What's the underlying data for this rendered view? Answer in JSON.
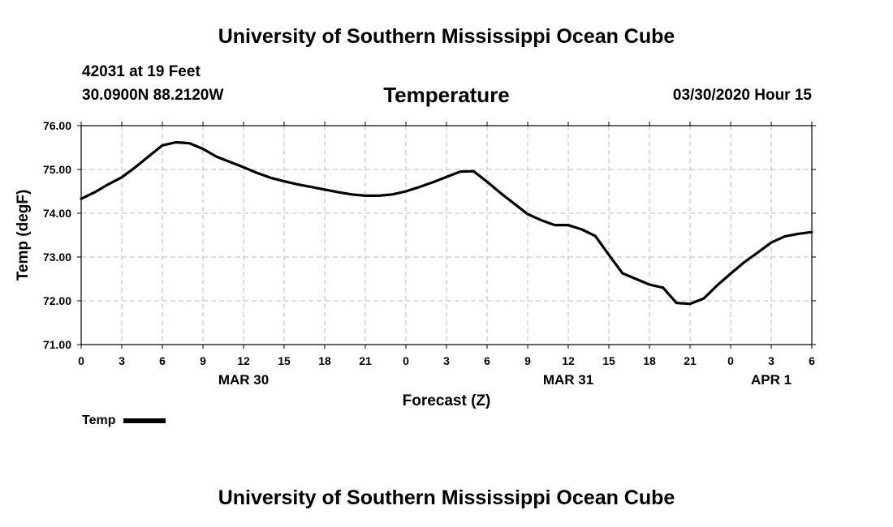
{
  "header": {
    "title": "University of Southern Mississippi Ocean Cube",
    "station": "42031 at 19 Feet",
    "coords": "30.0900N 88.2120W",
    "datetime": "03/30/2020 Hour 15"
  },
  "footer": {
    "title": "University of Southern Mississippi Ocean Cube"
  },
  "legend": {
    "label": "Temp"
  },
  "colors": {
    "line": "#000000",
    "grid": "#bdbdbd",
    "background": "#ffffff"
  },
  "chart_data": {
    "type": "line",
    "title": "Temperature",
    "xlabel": "Forecast (Z)",
    "ylabel": "Temp (degF)",
    "ylim": [
      71.0,
      76.0
    ],
    "yticks": [
      "71.00",
      "72.00",
      "73.00",
      "74.00",
      "75.00",
      "76.00"
    ],
    "x_unit": "hours from 03/30 00Z",
    "xlim": [
      0,
      54
    ],
    "xticks": [
      0,
      3,
      6,
      9,
      12,
      15,
      18,
      21,
      24,
      27,
      30,
      33,
      36,
      39,
      42,
      45,
      48,
      51,
      54
    ],
    "xtick_labels": [
      "0",
      "3",
      "6",
      "9",
      "12",
      "15",
      "18",
      "21",
      "0",
      "3",
      "6",
      "9",
      "12",
      "15",
      "18",
      "21",
      "0",
      "3",
      "6"
    ],
    "date_labels": [
      {
        "label": "MAR 30",
        "x": 12
      },
      {
        "label": "MAR 31",
        "x": 36
      },
      {
        "label": "APR 1",
        "x": 51
      }
    ],
    "grid": true,
    "legend_position": "bottom-left",
    "series": [
      {
        "name": "Temp",
        "x": [
          0,
          1,
          2,
          3,
          4,
          5,
          6,
          7,
          8,
          9,
          10,
          11,
          12,
          13,
          14,
          15,
          16,
          17,
          18,
          19,
          20,
          21,
          22,
          23,
          24,
          25,
          26,
          27,
          28,
          29,
          30,
          31,
          32,
          33,
          34,
          35,
          36,
          37,
          38,
          39,
          40,
          41,
          42,
          43,
          44,
          45,
          46,
          47,
          48,
          49,
          50,
          51,
          52,
          53,
          54
        ],
        "values": [
          74.33,
          74.48,
          74.66,
          74.82,
          75.05,
          75.3,
          75.55,
          75.62,
          75.6,
          75.47,
          75.29,
          75.17,
          75.05,
          74.92,
          74.81,
          74.73,
          74.66,
          74.6,
          74.54,
          74.48,
          74.43,
          74.4,
          74.4,
          74.43,
          74.5,
          74.6,
          74.71,
          74.83,
          74.95,
          74.96,
          74.72,
          74.46,
          74.22,
          73.98,
          73.84,
          73.73,
          73.73,
          73.63,
          73.48,
          73.05,
          72.63,
          72.5,
          72.37,
          72.3,
          71.95,
          71.93,
          72.05,
          72.35,
          72.62,
          72.88,
          73.1,
          73.33,
          73.47,
          73.53,
          73.57
        ]
      }
    ]
  }
}
